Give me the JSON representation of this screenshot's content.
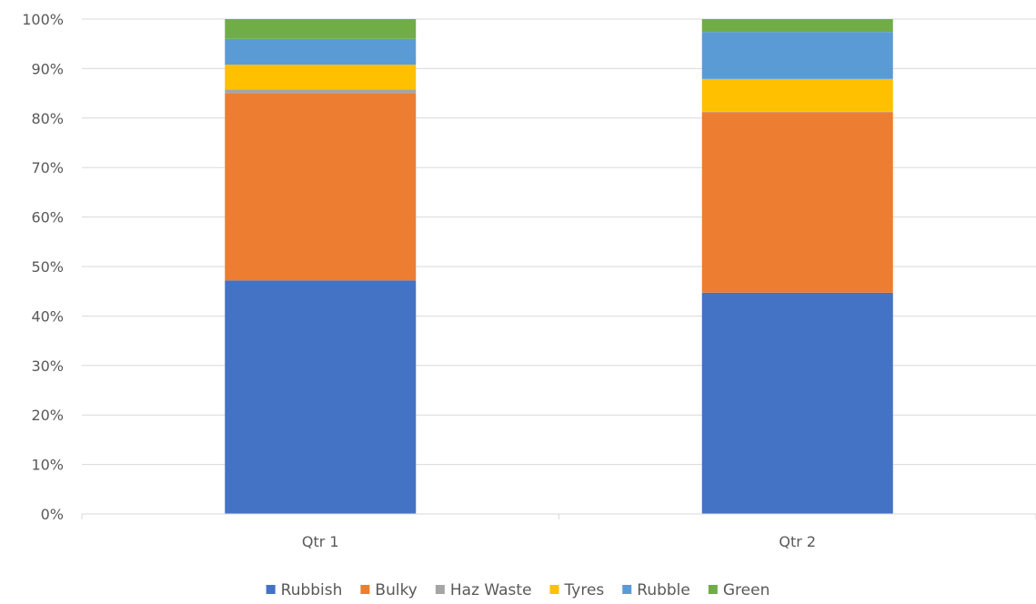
{
  "chart_data": {
    "type": "bar",
    "stacked": true,
    "normalized": true,
    "categories": [
      "Qtr 1",
      "Qtr 2"
    ],
    "series": [
      {
        "name": "Rubbish",
        "color": "#4472C4",
        "values": [
          47.2,
          44.7
        ]
      },
      {
        "name": "Bulky",
        "color": "#ED7D31",
        "values": [
          37.8,
          36.5
        ]
      },
      {
        "name": "Haz Waste",
        "color": "#A5A5A5",
        "values": [
          0.8,
          0.1
        ]
      },
      {
        "name": "Tyres",
        "color": "#FFC000",
        "values": [
          5.0,
          6.6
        ]
      },
      {
        "name": "Rubble",
        "color": "#5B9BD5",
        "values": [
          5.2,
          9.5
        ]
      },
      {
        "name": "Green",
        "color": "#70AD47",
        "values": [
          4.0,
          2.6
        ]
      }
    ],
    "ylim": [
      0,
      100
    ],
    "y_ticks": [
      "0%",
      "10%",
      "20%",
      "30%",
      "40%",
      "50%",
      "60%",
      "70%",
      "80%",
      "90%",
      "100%"
    ],
    "grid": true,
    "legend_position": "bottom"
  }
}
